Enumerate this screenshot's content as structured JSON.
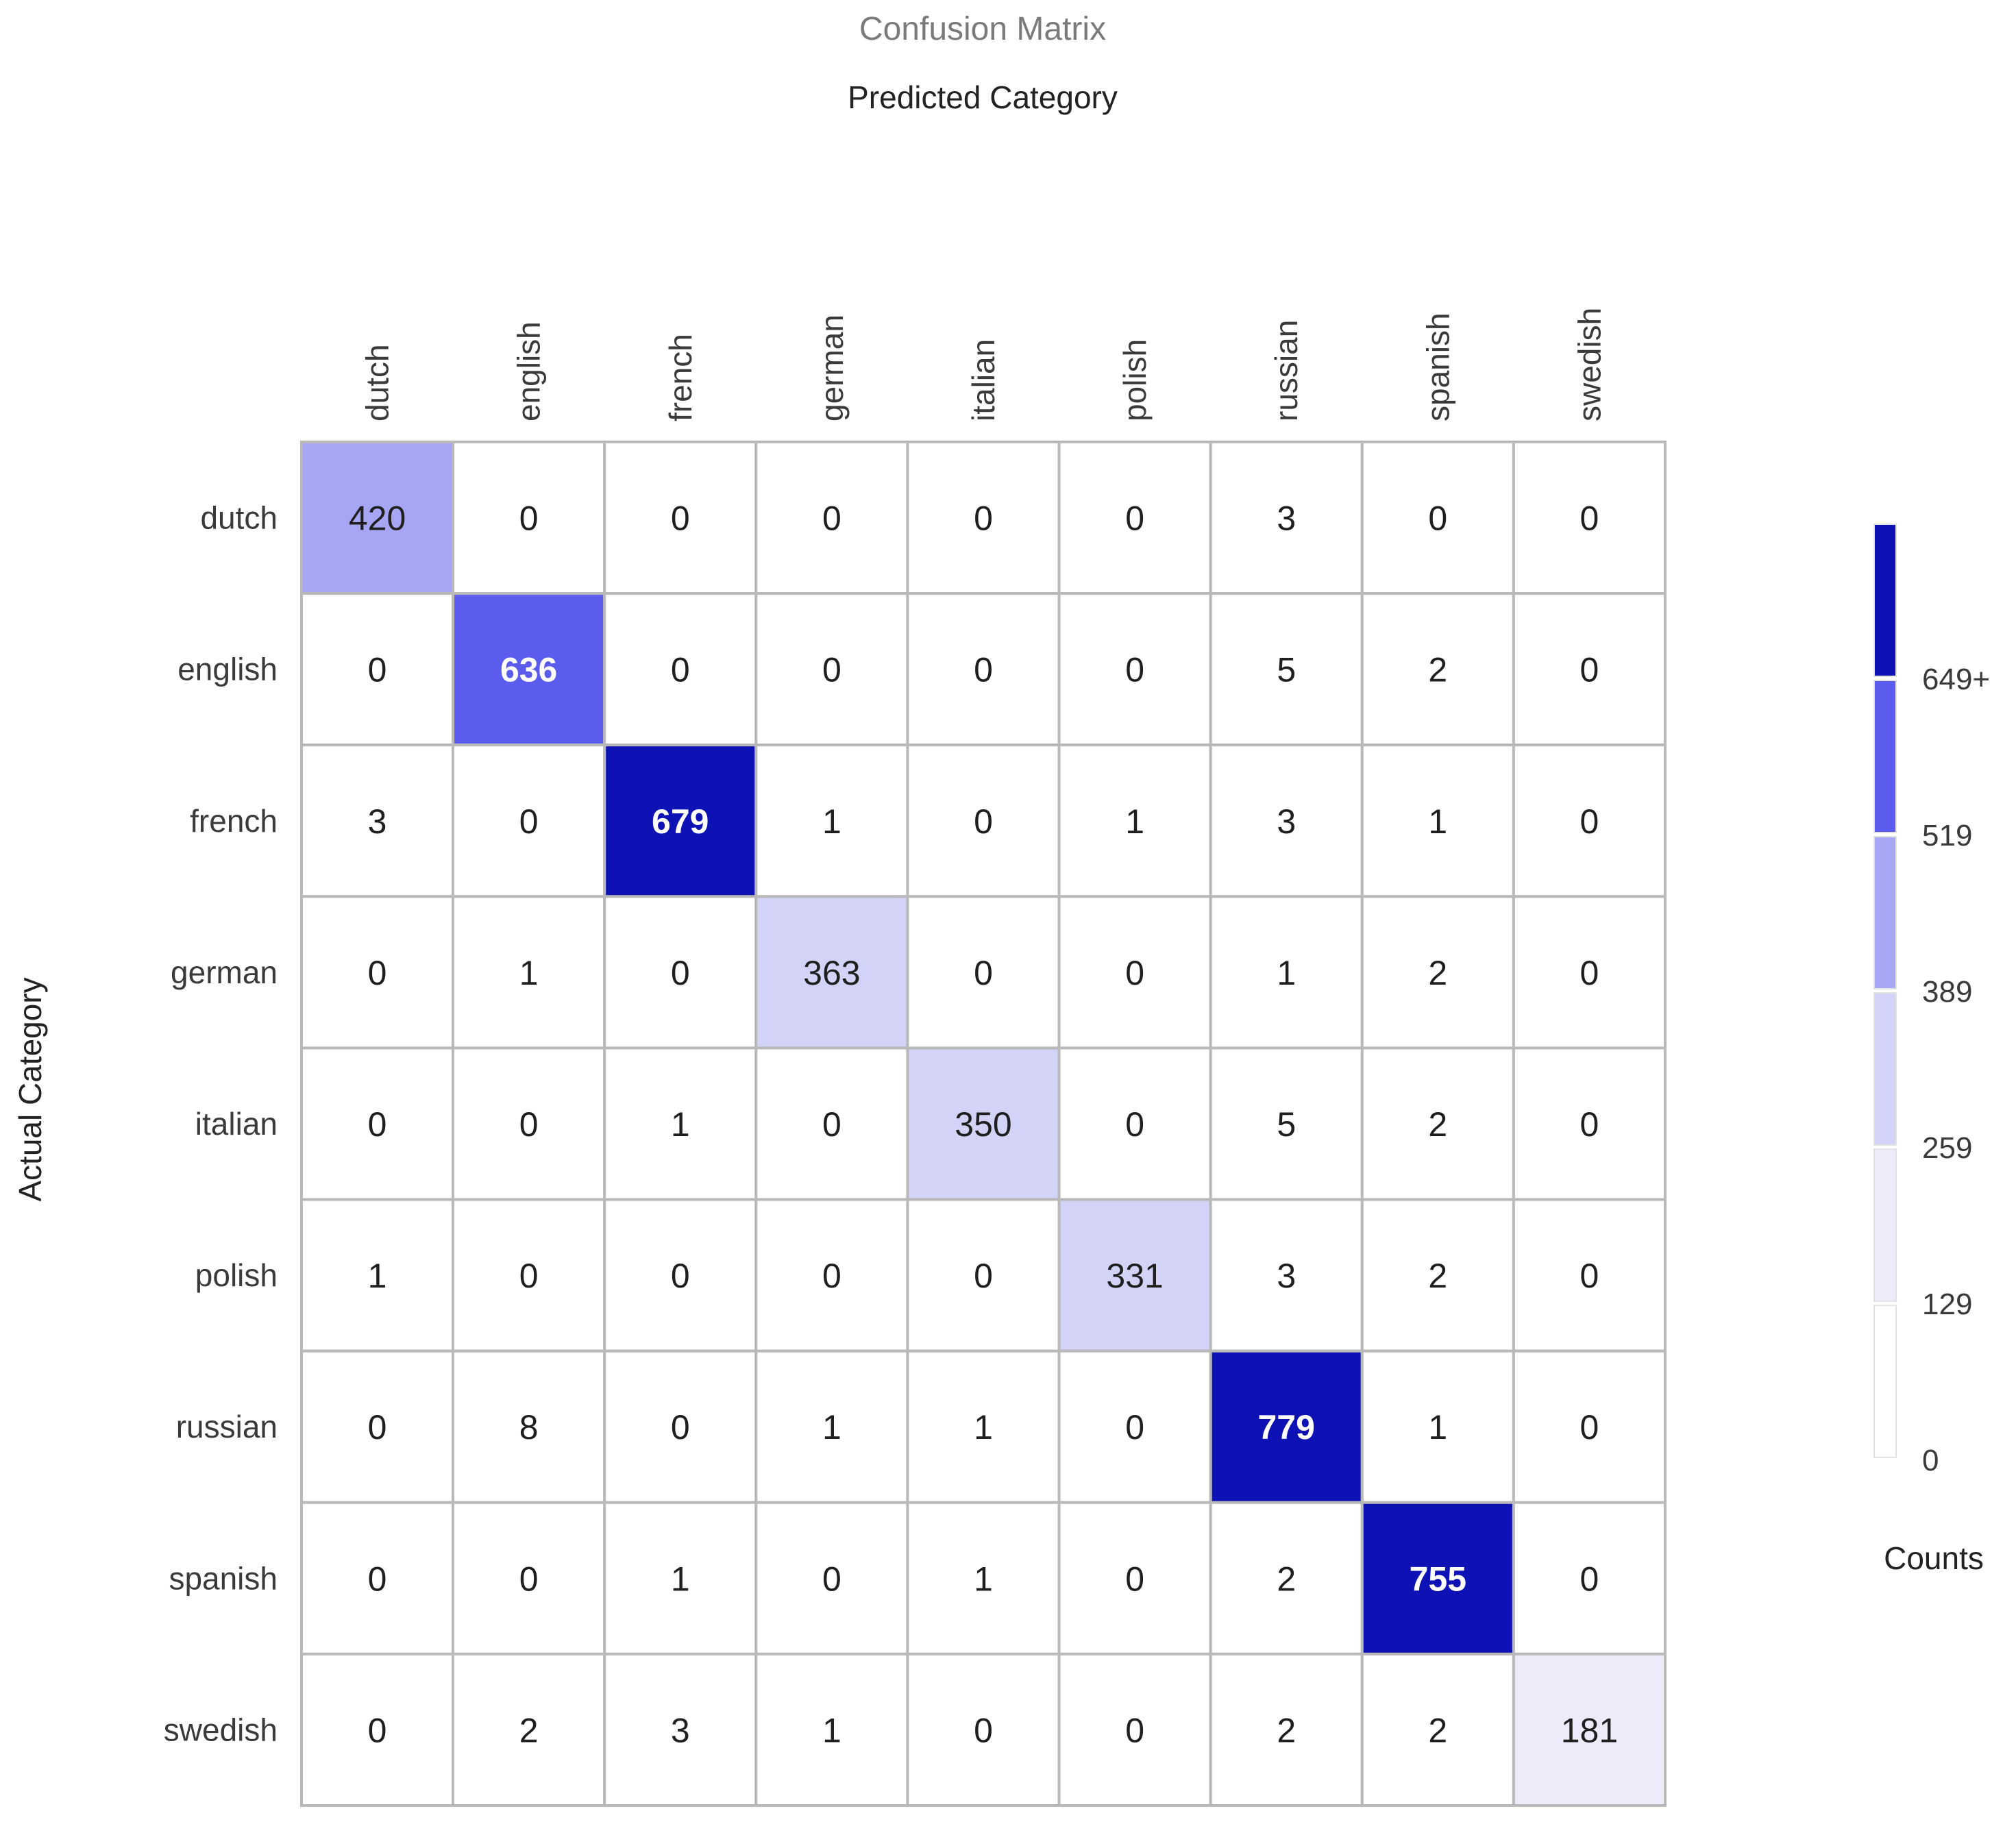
{
  "chart_data": {
    "type": "heatmap",
    "title": "Confusion Matrix",
    "xlabel": "Predicted Category",
    "ylabel": "Actual Category",
    "x_categories": [
      "dutch",
      "english",
      "french",
      "german",
      "italian",
      "polish",
      "russian",
      "spanish",
      "swedish"
    ],
    "y_categories": [
      "dutch",
      "english",
      "french",
      "german",
      "italian",
      "polish",
      "russian",
      "spanish",
      "swedish"
    ],
    "values": [
      [
        420,
        0,
        0,
        0,
        0,
        0,
        3,
        0,
        0
      ],
      [
        0,
        636,
        0,
        0,
        0,
        0,
        5,
        2,
        0
      ],
      [
        3,
        0,
        679,
        1,
        0,
        1,
        3,
        1,
        0
      ],
      [
        0,
        1,
        0,
        363,
        0,
        0,
        1,
        2,
        0
      ],
      [
        0,
        0,
        1,
        0,
        350,
        0,
        5,
        2,
        0
      ],
      [
        1,
        0,
        0,
        0,
        0,
        331,
        3,
        2,
        0
      ],
      [
        0,
        8,
        0,
        1,
        1,
        0,
        779,
        1,
        0
      ],
      [
        0,
        0,
        1,
        0,
        1,
        0,
        2,
        755,
        0
      ],
      [
        0,
        2,
        3,
        1,
        0,
        0,
        2,
        2,
        181
      ]
    ],
    "colorbar": {
      "title": "Counts",
      "tick_labels": [
        "0",
        "129",
        "259",
        "389",
        "519",
        "649+"
      ],
      "thresholds": [
        0,
        129,
        259,
        389,
        519,
        649
      ],
      "bin_colors": [
        "#ffffff",
        "#ebebfa",
        "#d3d3f7",
        "#a6a6f4",
        "#5b5ced",
        "#0e12b5"
      ]
    },
    "text_colors": {
      "dark": "#1f1f1f",
      "light": "#ffffff"
    },
    "grid_color": "#b9b9b9",
    "title_color": "#7a7a7a",
    "label_color": "#3a3a3a"
  }
}
